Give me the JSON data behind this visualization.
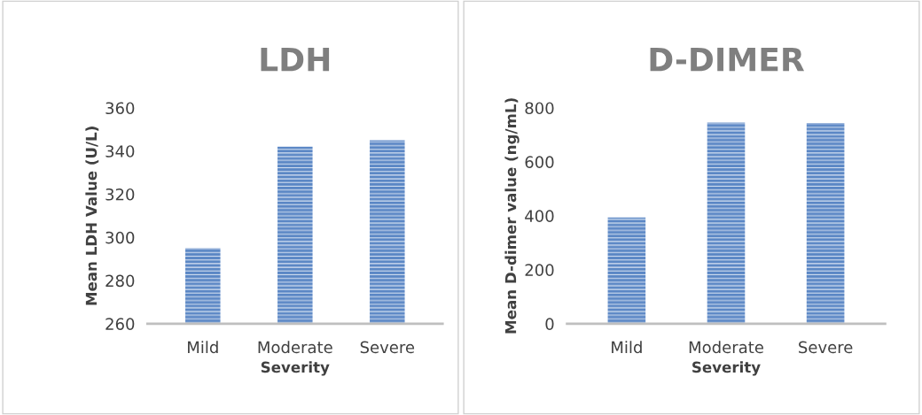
{
  "chart_data": [
    {
      "type": "bar",
      "title": "LDH",
      "xlabel": "Severity",
      "ylabel": "Mean LDH Value (U/L)",
      "categories": [
        "Mild",
        "Moderate",
        "Severe"
      ],
      "values": [
        295,
        342,
        345
      ],
      "color": "#5b87c5",
      "ylim": [
        260,
        360
      ],
      "yticks": [
        260,
        280,
        300,
        320,
        340,
        360
      ],
      "grid": false
    },
    {
      "type": "bar",
      "title": "D-DIMER",
      "xlabel": "Severity",
      "ylabel": "Mean D-dimer value (ng/mL)",
      "categories": [
        "Mild",
        "Moderate",
        "Severe"
      ],
      "values": [
        394,
        746,
        744
      ],
      "color": "#5b87c5",
      "ylim": [
        0,
        800
      ],
      "yticks": [
        0,
        200,
        400,
        600,
        800
      ],
      "grid": false
    }
  ]
}
